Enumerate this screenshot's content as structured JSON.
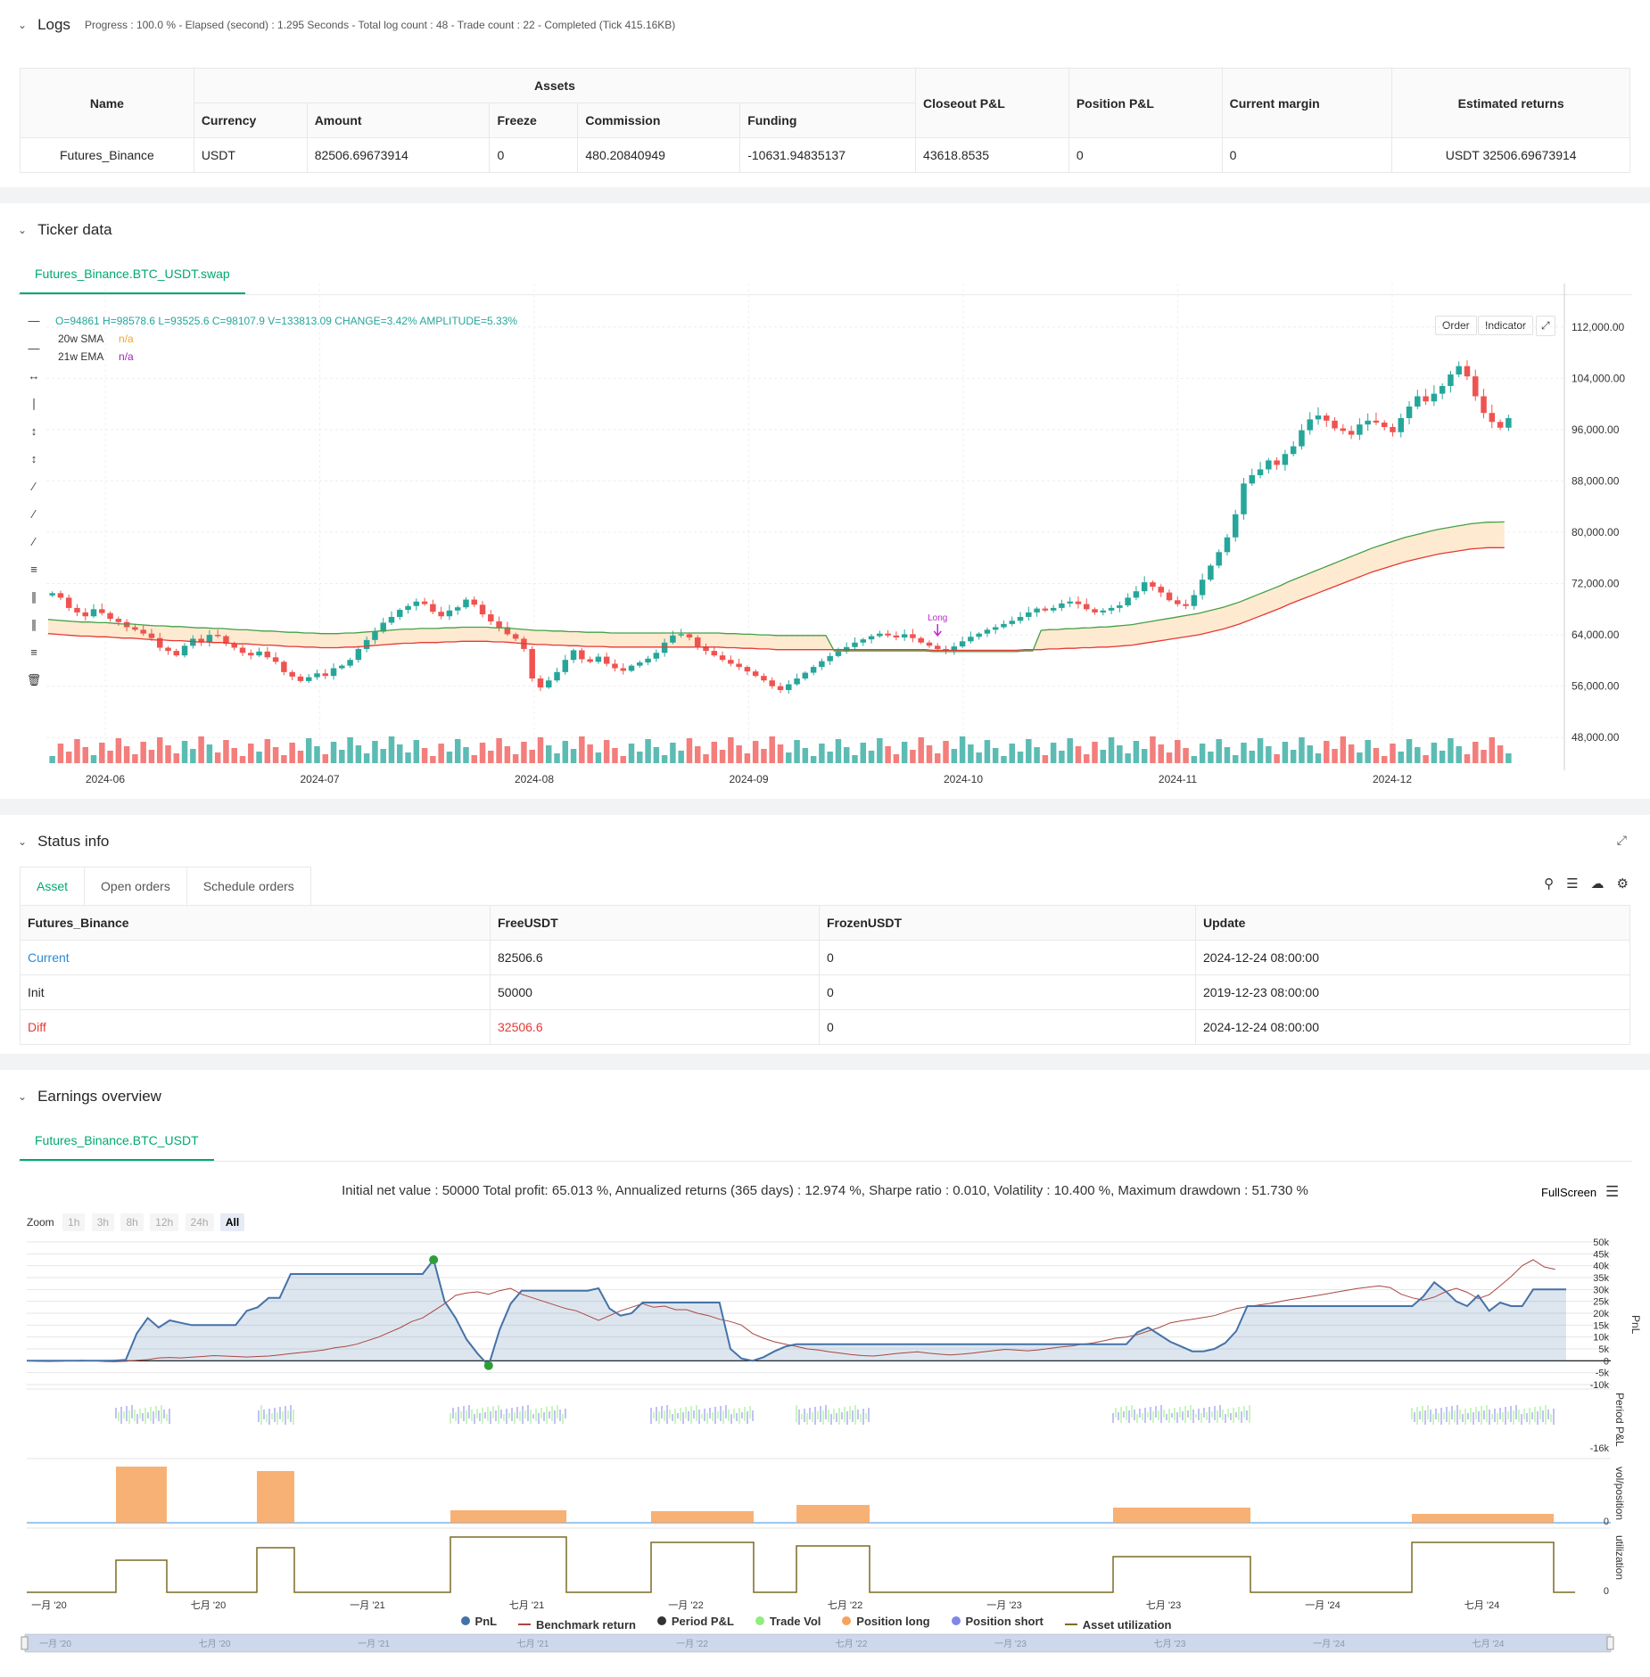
{
  "logs": {
    "title": "Logs",
    "info": "Progress : 100.0 % - Elapsed (second) : 1.295  Seconds - Total log count : 48 - Trade count : 22 - Completed (Tick 415.16KB)",
    "headers": {
      "name": "Name",
      "assets": "Assets",
      "currency": "Currency",
      "amount": "Amount",
      "freeze": "Freeze",
      "commission": "Commission",
      "funding": "Funding",
      "closeout": "Closeout P&L",
      "position": "Position P&L",
      "margin": "Current margin",
      "estimated": "Estimated returns"
    },
    "row": {
      "name": "Futures_Binance",
      "currency": "USDT",
      "amount": "82506.69673914",
      "freeze": "0",
      "commission": "480.20840949",
      "funding": "-10631.94835137",
      "closeout": "43618.8535",
      "position": "0",
      "margin": "0",
      "estimated": "USDT 32506.69673914"
    }
  },
  "ticker": {
    "title": "Ticker data",
    "tab": "Futures_Binance.BTC_USDT.swap",
    "ohlc": "O=94861  H=98578.6  L=93525.6  C=98107.9  V=133813.09  CHANGE=3.42%  AMPLITUDE=5.33%",
    "sma_label": "20w SMA",
    "sma_value": "n/a",
    "ema_label": "21w EMA",
    "ema_value": "n/a",
    "order_btn": "Order",
    "indicator_btn": "Indicator",
    "long_label": "Long",
    "colors": {
      "up": "#26a69a",
      "down": "#ef5350",
      "sma": "#e53935",
      "ema": "#43a047",
      "band": "#fde5c4"
    }
  },
  "chart_data": [
    {
      "type": "candlestick",
      "title": "Futures_Binance.BTC_USDT.swap",
      "x_ticks": [
        "2024-06",
        "2024-07",
        "2024-08",
        "2024-09",
        "2024-10",
        "2024-11",
        "2024-12"
      ],
      "y_ticks": [
        "112,000.00",
        "104,000.00",
        "96,000.00",
        "88,000.00",
        "80,000.00",
        "72,000.00",
        "64,000.00",
        "56,000.00",
        "48,000.00"
      ],
      "ylim": [
        44000,
        116000
      ],
      "close_series": [
        70500,
        69800,
        68200,
        67500,
        66900,
        68000,
        67400,
        66500,
        66000,
        65200,
        64800,
        64200,
        63500,
        62000,
        61500,
        60800,
        62300,
        63400,
        62800,
        64000,
        63800,
        62600,
        62000,
        61200,
        60800,
        61400,
        60500,
        59800,
        58200,
        57500,
        56800,
        57400,
        58000,
        57600,
        58800,
        59200,
        60100,
        61800,
        63200,
        64500,
        65900,
        66800,
        67900,
        68500,
        69200,
        68800,
        67600,
        66900,
        67800,
        68300,
        69500,
        68700,
        67200,
        66100,
        65200,
        64100,
        63400,
        61800,
        57200,
        55800,
        56900,
        58200,
        60100,
        61600,
        60200,
        59800,
        60600,
        59500,
        58800,
        58400,
        59200,
        59700,
        60300,
        61200,
        62800,
        63900,
        64100,
        63600,
        62200,
        61500,
        60800,
        60100,
        59500,
        59000,
        58300,
        57600,
        56900,
        56000,
        55400,
        56300,
        57200,
        58100,
        59000,
        59900,
        60700,
        61400,
        62100,
        62800,
        63300,
        63800,
        64200,
        63900,
        63600,
        64100,
        63500,
        62800,
        62300,
        61800,
        61500,
        62200,
        63000,
        63700,
        64200,
        64800,
        65200,
        65700,
        66200,
        66800,
        67500,
        68100,
        67800,
        68200,
        68900,
        69200,
        68800,
        68000,
        67500,
        67800,
        68200,
        68600,
        69800,
        70800,
        72200,
        71500,
        70600,
        69400,
        68800,
        68500,
        70200,
        72600,
        74800,
        76900,
        79200,
        82800,
        87600,
        88900,
        89800,
        91200,
        90500,
        92200,
        93400,
        95900,
        97600,
        98200,
        97400,
        96200,
        95800,
        95200,
        96800,
        97400,
        97100,
        96400,
        95600,
        97800,
        99600,
        101200,
        100400,
        101600,
        102800,
        104600,
        105900,
        104300,
        101200,
        98600,
        97200,
        96300,
        97800
      ],
      "sma_20w": [
        64200,
        64100,
        64000,
        63900,
        63800,
        63800,
        63700,
        63700,
        63600,
        63500,
        63500,
        63400,
        63300,
        63200,
        63200,
        63100,
        63100,
        63000,
        62900,
        62900,
        62800,
        62800,
        62700,
        62600,
        62600,
        62500,
        62400,
        62400,
        62300,
        62200,
        62200,
        62100,
        62100,
        62000,
        62000,
        62000,
        62100,
        62100,
        62200,
        62300,
        62400,
        62500,
        62600,
        62700,
        62700,
        62800,
        62800,
        62800,
        62900,
        62900,
        63000,
        63000,
        63000,
        63000,
        62900,
        62900,
        62800,
        62700,
        62600,
        62500,
        62500,
        62400,
        62400,
        62300,
        62300,
        62200,
        62200,
        62200,
        62100,
        62100,
        62100,
        62100,
        62100,
        62100,
        62100,
        62100,
        62100,
        62100,
        62100,
        62100,
        62100,
        62100,
        62000,
        62000,
        61900,
        61900,
        61800,
        61800,
        61700,
        61700,
        61700,
        61700,
        61700,
        61700,
        61700,
        61700,
        61700,
        61700,
        61700,
        61700,
        61700,
        61700,
        61700,
        61700,
        61700,
        61700,
        61700,
        61600,
        61600,
        61600,
        61600,
        61600,
        61600,
        61600,
        61600,
        61600,
        61600,
        61600,
        61700,
        61700,
        61700,
        61800,
        61800,
        61900,
        61900,
        62000,
        62000,
        62100,
        62100,
        62200,
        62300,
        62400,
        62600,
        62800,
        63000,
        63200,
        63400,
        63600,
        63800,
        64000,
        64300,
        64600,
        64900,
        65300,
        65700,
        66200,
        66700,
        67200,
        67700,
        68200,
        68800,
        69300,
        69800,
        70300,
        70800,
        71300,
        71800,
        72300,
        72800,
        73300,
        73800,
        74200,
        74600,
        75000,
        75400,
        75700,
        76000,
        76300,
        76600,
        76800,
        77000,
        77200,
        77400,
        77500,
        77600,
        77600,
        77600
      ]
    },
    {
      "type": "line",
      "title": "Initial net value : 50000 Total profit: 65.013 %, Annualized returns (365 days) : 12.974 %, Sharpe ratio : 0.010, Volatility : 10.400 %, Maximum drawdown : 51.730 %",
      "x_ticks": [
        "一月 '20",
        "七月 '20",
        "一月 '21",
        "七月 '21",
        "一月 '22",
        "七月 '22",
        "一月 '23",
        "七月 '23",
        "一月 '24",
        "七月 '24"
      ],
      "y_ticks": [
        "50k",
        "45k",
        "40k",
        "35k",
        "30k",
        "25k",
        "20k",
        "15k",
        "10k",
        "5k",
        "0",
        "-5k",
        "-10k"
      ],
      "ylim": [
        -10000,
        50000
      ],
      "series": [
        {
          "name": "PnL",
          "values": [
            0,
            0,
            0,
            0,
            0,
            0,
            0,
            0,
            100,
            400,
            11500,
            18000,
            14000,
            17000,
            16000,
            15000,
            15000,
            15000,
            15000,
            15000,
            21000,
            22500,
            26500,
            26500,
            36500,
            36500,
            36500,
            36500,
            36500,
            36500,
            36500,
            36500,
            36500,
            36500,
            36500,
            36500,
            36500,
            42500,
            25000,
            18000,
            9000,
            3000,
            -2000,
            13000,
            24000,
            29500,
            29500,
            29500,
            29500,
            29500,
            29500,
            29500,
            30500,
            22000,
            19000,
            20000,
            24500,
            24500,
            24500,
            24500,
            24500,
            24500,
            24500,
            24500,
            5000,
            1000,
            0,
            1500,
            4000,
            6000,
            7000,
            7000,
            7000,
            7000,
            7000,
            7000,
            7000,
            7000,
            7000,
            7000,
            7000,
            7000,
            7000,
            7000,
            7000,
            7000,
            7000,
            7000,
            7000,
            7000,
            7000,
            7000,
            7000,
            7000,
            7000,
            7000,
            7000,
            7000,
            7000,
            7000,
            7000,
            12000,
            14000,
            11000,
            8000,
            6000,
            4000,
            4000,
            5000,
            7500,
            12500,
            23000,
            23000,
            23000,
            23000,
            23000,
            23000,
            23000,
            23000,
            23000,
            23000,
            23000,
            23000,
            23000,
            23000,
            23000,
            23000,
            27000,
            33000,
            29500,
            25000,
            23000,
            27500,
            21000,
            24500,
            23000,
            23000,
            30000,
            30000,
            30000,
            30000
          ]
        },
        {
          "name": "Benchmark return",
          "values": [
            0,
            -200,
            -300,
            -200,
            0,
            200,
            100,
            -300,
            -400,
            -200,
            200,
            500,
            1200,
            1400,
            1200,
            1500,
            1800,
            2200,
            2000,
            1800,
            1600,
            1800,
            2000,
            2500,
            3000,
            3500,
            4000,
            4500,
            5500,
            6000,
            7000,
            8500,
            10000,
            12000,
            14000,
            16500,
            18000,
            21000,
            24000,
            27500,
            28500,
            29000,
            28000,
            29500,
            30500,
            28000,
            26500,
            25000,
            23500,
            22000,
            21000,
            19000,
            17000,
            19000,
            21000,
            22500,
            24000,
            22500,
            23000,
            21500,
            21500,
            20000,
            19000,
            17500,
            16500,
            15000,
            11500,
            9500,
            8000,
            7000,
            6000,
            5000,
            4500,
            3800,
            3200,
            2600,
            2200,
            2000,
            2500,
            3000,
            3400,
            3800,
            3200,
            2800,
            2500,
            2800,
            3200,
            3800,
            4300,
            4800,
            4500,
            4200,
            4600,
            5200,
            5800,
            6200,
            7000,
            7500,
            8500,
            9500,
            10000,
            11000,
            12500,
            14000,
            16000,
            16800,
            17500,
            18200,
            19000,
            20500,
            22000,
            22800,
            23400,
            24100,
            25000,
            25800,
            26500,
            27200,
            28000,
            28800,
            29600,
            30400,
            31000,
            31500,
            30800,
            28000,
            26500,
            25500,
            26800,
            29000,
            30500,
            28800,
            26200,
            27800,
            31500,
            35500,
            40000,
            42500,
            39500,
            38500
          ]
        }
      ]
    }
  ],
  "status": {
    "title": "Status info",
    "tabs": [
      "Asset",
      "Open orders",
      "Schedule orders"
    ],
    "headers": [
      "Futures_Binance",
      "FreeUSDT",
      "FrozenUSDT",
      "Update"
    ],
    "rows": [
      {
        "label": "Current",
        "free": "82506.6",
        "frozen": "0",
        "update": "2024-12-24 08:00:00"
      },
      {
        "label": "Init",
        "free": "50000",
        "frozen": "0",
        "update": "2019-12-23 08:00:00"
      },
      {
        "label": "Diff",
        "free": "32506.6",
        "frozen": "0",
        "update": "2024-12-24 08:00:00"
      }
    ]
  },
  "earnings": {
    "title": "Earnings overview",
    "tab": "Futures_Binance.BTC_USDT",
    "fullscreen": "FullScreen",
    "zoom_label": "Zoom",
    "zoom_opts": [
      "1h",
      "3h",
      "8h",
      "12h",
      "24h",
      "All"
    ],
    "side_labels": [
      "PnL",
      "Period P&L",
      "vol/position",
      "utilization"
    ],
    "period_min": "-16k",
    "zero": "0",
    "legend": [
      {
        "name": "PnL",
        "color": "#4572a7",
        "kind": "dot"
      },
      {
        "name": "Benchmark return",
        "color": "#aa4643",
        "kind": "line"
      },
      {
        "name": "Period P&L",
        "color": "#333333",
        "kind": "dot"
      },
      {
        "name": "Trade Vol",
        "color": "#90ed7d",
        "kind": "dot"
      },
      {
        "name": "Position long",
        "color": "#f7a35c",
        "kind": "dot"
      },
      {
        "name": "Position short",
        "color": "#8085e9",
        "kind": "dot"
      },
      {
        "name": "Asset utilization",
        "color": "#7c6b24",
        "kind": "line"
      }
    ]
  }
}
